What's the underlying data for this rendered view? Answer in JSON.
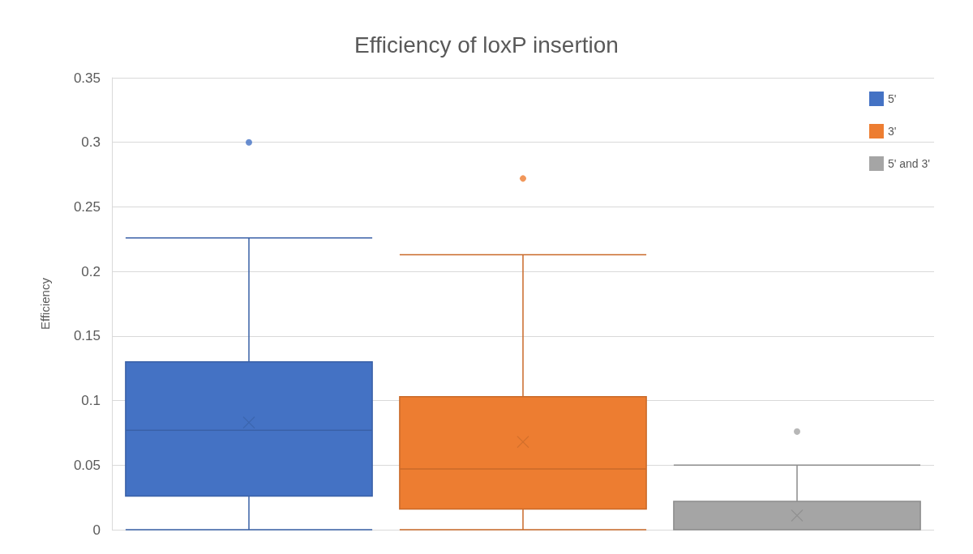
{
  "chart_data": {
    "type": "box",
    "title": "Efficiency of loxP insertion",
    "ylabel": "Efficiency",
    "categories": [
      null,
      null,
      null
    ],
    "series": [
      {
        "name": "5'",
        "color": "#4472c4",
        "boxes": [
          {
            "low": 0,
            "q1": 0.026,
            "median": 0.077,
            "q3": 0.13,
            "high": 0.226,
            "mean": 0.083,
            "outliers": [
              0.3
            ]
          },
          null,
          null
        ]
      },
      {
        "name": "3'",
        "color": "#ed7d31",
        "boxes": [
          null,
          {
            "low": 0,
            "q1": 0.016,
            "median": 0.047,
            "q3": 0.103,
            "high": 0.213,
            "mean": 0.068,
            "outliers": [
              0.272
            ]
          },
          null
        ]
      },
      {
        "name": "5' and 3'",
        "color": "#a5a5a5",
        "boxes": [
          null,
          null,
          {
            "low": 0,
            "q1": 0,
            "median": 0,
            "q3": 0.022,
            "high": 0.05,
            "mean": 0.011,
            "outliers": [
              0.076
            ]
          }
        ]
      }
    ],
    "ylim": [
      0,
      0.35
    ],
    "yticks": [
      0,
      0.05,
      0.1,
      0.15,
      0.2,
      0.25,
      0.3,
      0.35
    ],
    "grid": "y",
    "legend": "top right"
  }
}
